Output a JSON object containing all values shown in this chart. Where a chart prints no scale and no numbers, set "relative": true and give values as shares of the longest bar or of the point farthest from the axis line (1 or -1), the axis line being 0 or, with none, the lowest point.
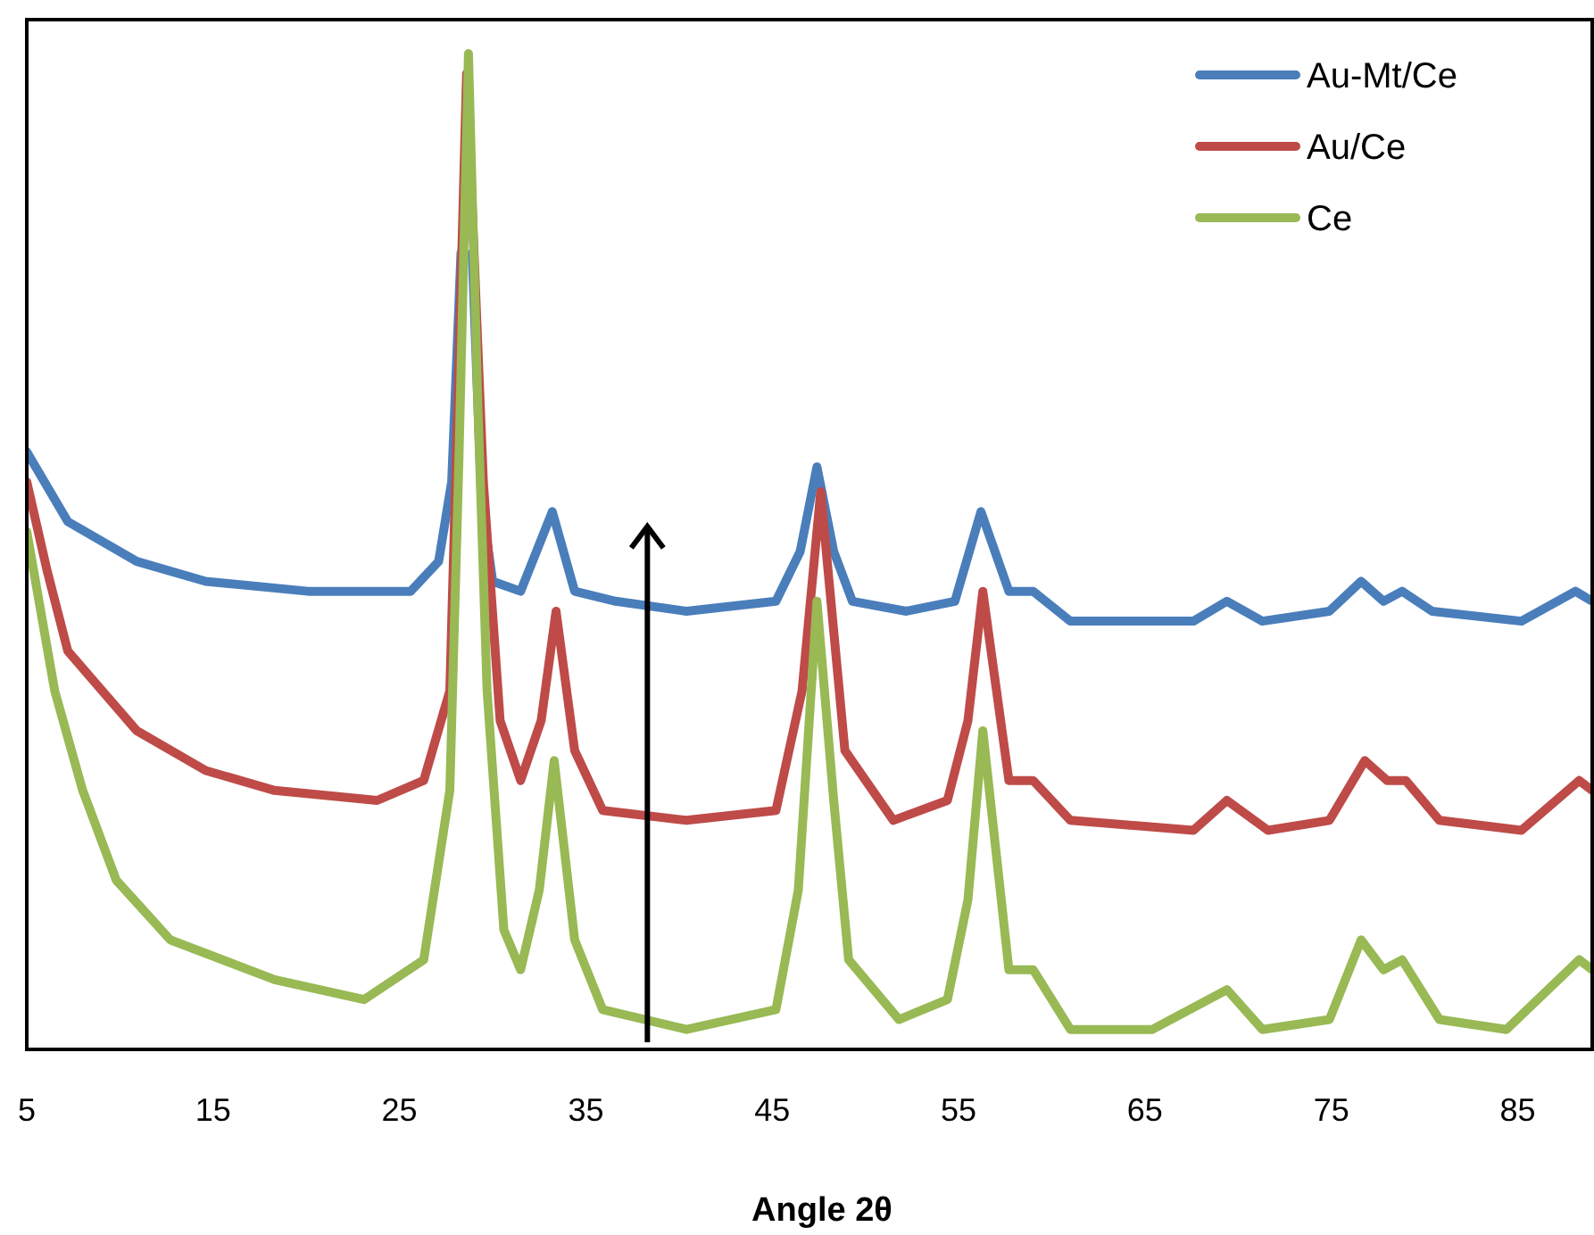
{
  "chart_data": {
    "type": "line",
    "relative": true,
    "xlabel": "Angle 2θ",
    "xlim": [
      5,
      89
    ],
    "xticks": [
      5,
      15,
      25,
      35,
      45,
      55,
      65,
      75,
      85
    ],
    "legend": "top right",
    "grid": false,
    "line_style": "solid",
    "marker": "none",
    "series": [
      {
        "name": "Au-Mt/Ce",
        "color": "#4a7ebb",
        "x": [
          5,
          7.2,
          10.9,
          14.6,
          20.1,
          25.6,
          27.1,
          27.8,
          28.3,
          28.6,
          28.9,
          29.4,
          30,
          31.5,
          33.2,
          34.4,
          36.6,
          40.4,
          45.2,
          46.5,
          47.4,
          48.3,
          49.3,
          52.2,
          54.8,
          56.2,
          57.7,
          59,
          61,
          67.6,
          69.4,
          71.3,
          74.9,
          76.6,
          77.8,
          78.8,
          80.4,
          85.2,
          88.1,
          89
        ],
        "values": [
          0.6,
          0.53,
          0.49,
          0.47,
          0.46,
          0.46,
          0.49,
          0.57,
          0.8,
          null,
          0.8,
          0.55,
          0.47,
          0.46,
          0.54,
          0.46,
          0.45,
          0.44,
          0.45,
          0.5,
          0.585,
          0.5,
          0.45,
          0.44,
          0.45,
          0.54,
          0.46,
          0.46,
          0.43,
          0.43,
          0.45,
          0.43,
          0.44,
          0.47,
          0.45,
          0.46,
          0.44,
          0.43,
          0.46,
          0.45
        ]
      },
      {
        "name": "Au/Ce",
        "color": "#be4b48",
        "x": [
          5,
          6.1,
          7.2,
          10.9,
          14.6,
          18.3,
          23.8,
          26.3,
          27.7,
          28.2,
          28.6,
          29,
          29.5,
          30.4,
          31.5,
          32.6,
          33.4,
          34.4,
          35.9,
          40.4,
          45.2,
          46.6,
          47.6,
          48.9,
          51.5,
          54.4,
          55.5,
          56.3,
          57.7,
          59,
          61,
          67.6,
          69.4,
          71.6,
          74.9,
          76.8,
          78,
          79,
          80.8,
          85.2,
          88.3,
          89
        ],
        "values": [
          0.57,
          0.48,
          0.4,
          0.32,
          0.28,
          0.26,
          0.25,
          0.27,
          0.36,
          0.7,
          0.98,
          0.8,
          0.57,
          0.33,
          0.27,
          0.33,
          0.44,
          0.3,
          0.24,
          0.23,
          0.24,
          0.36,
          0.56,
          0.3,
          0.23,
          0.25,
          0.33,
          0.46,
          0.27,
          0.27,
          0.23,
          0.22,
          0.25,
          0.22,
          0.23,
          0.29,
          0.27,
          0.27,
          0.23,
          0.22,
          0.27,
          0.26
        ]
      },
      {
        "name": "Ce",
        "color": "#98b954",
        "x": [
          5,
          6.5,
          8,
          9.8,
          12.7,
          18.3,
          23.1,
          26.3,
          27.7,
          28.2,
          28.7,
          29.2,
          29.7,
          30.6,
          31.5,
          32.5,
          33.3,
          34.4,
          35.9,
          40.4,
          45.2,
          46.4,
          47.4,
          48.3,
          49.1,
          51.8,
          54.4,
          55.5,
          56.3,
          57.7,
          59,
          61,
          65.4,
          69.4,
          71.3,
          74.9,
          76.6,
          77.8,
          78.8,
          80.8,
          84.4,
          88.3,
          89
        ],
        "values": [
          0.52,
          0.36,
          0.26,
          0.17,
          0.11,
          0.07,
          0.05,
          0.09,
          0.26,
          0.6,
          1,
          0.65,
          0.36,
          0.12,
          0.08,
          0.16,
          0.29,
          0.11,
          0.04,
          0.02,
          0.04,
          0.16,
          0.45,
          0.25,
          0.09,
          0.03,
          0.05,
          0.15,
          0.32,
          0.08,
          0.08,
          0.02,
          0.02,
          0.06,
          0.02,
          0.03,
          0.11,
          0.08,
          0.09,
          0.03,
          0.02,
          0.09,
          0.08
        ]
      }
    ]
  }
}
